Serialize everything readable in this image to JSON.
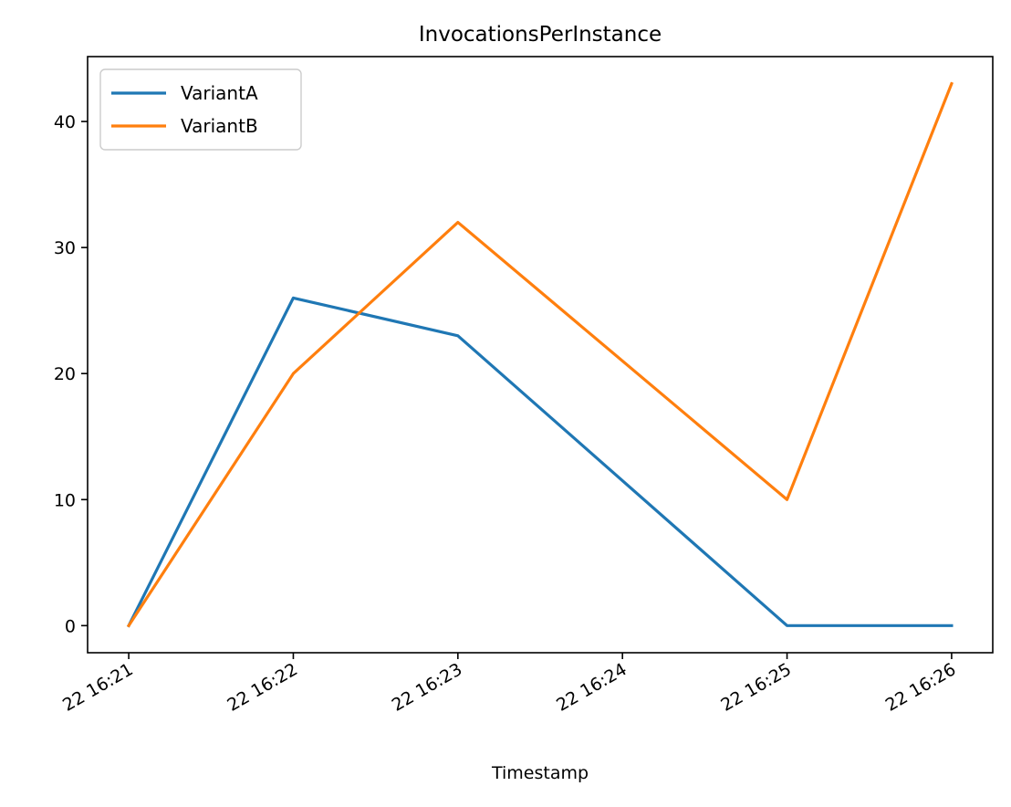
{
  "chart_data": {
    "type": "line",
    "title": "InvocationsPerInstance",
    "xlabel": "Timestamp",
    "ylabel": "",
    "x": [
      "22 16:21",
      "22 16:22",
      "22 16:23",
      "22 16:24",
      "22 16:25",
      "22 16:26"
    ],
    "x_ticks": [
      "22 16:21",
      "22 16:22",
      "22 16:23",
      "22 16:24",
      "22 16:25",
      "22 16:26"
    ],
    "series": [
      {
        "name": "VariantA",
        "color": "#1f77b4",
        "x": [
          "22 16:21",
          "22 16:22",
          "22 16:23",
          "22 16:25",
          "22 16:26"
        ],
        "values": [
          0,
          26,
          23,
          0,
          0
        ]
      },
      {
        "name": "VariantB",
        "color": "#ff7f0e",
        "x": [
          "22 16:21",
          "22 16:22",
          "22 16:23",
          "22 16:25",
          "22 16:26"
        ],
        "values": [
          0,
          20,
          32,
          10,
          43
        ]
      }
    ],
    "y_ticks": [
      0,
      10,
      20,
      30,
      40
    ],
    "ylim": [
      -2.15,
      45.15
    ],
    "grid": false,
    "legend_position": "upper-left"
  }
}
